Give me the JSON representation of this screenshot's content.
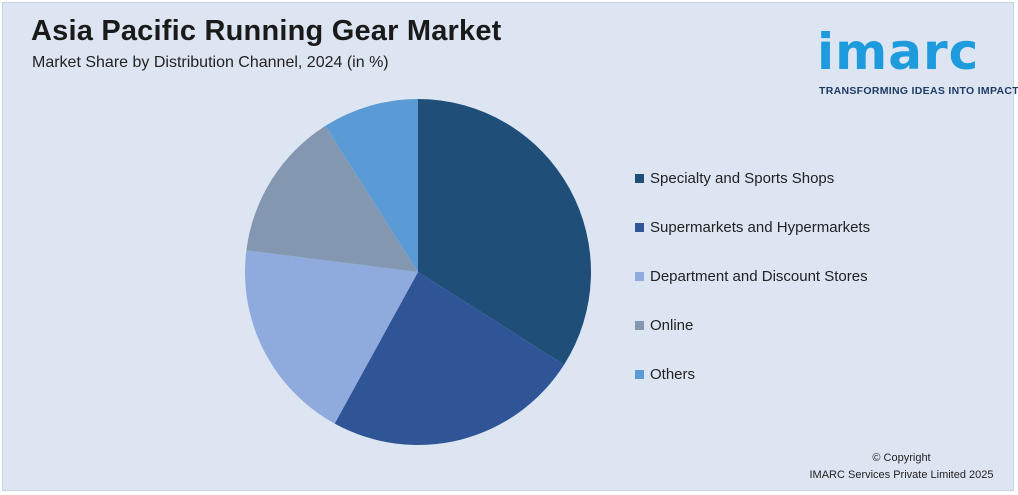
{
  "header": {
    "title": "Asia Pacific Running Gear Market",
    "subtitle": "Market Share by Distribution Channel, 2024 (in %)"
  },
  "logo": {
    "wordmark": "imarc",
    "tagline": "TRANSFORMING IDEAS INTO IMPACT",
    "color": "#1d9bdc"
  },
  "chart_data": {
    "type": "pie",
    "title": "Asia Pacific Running Gear Market",
    "subtitle": "Market Share by Distribution Channel, 2024 (in %)",
    "categories": [
      "Specialty and Sports Shops",
      "Supermarkets and Hypermarkets",
      "Department and Discount Stores",
      "Online",
      "Others"
    ],
    "values": [
      34,
      24,
      19,
      14,
      9
    ],
    "colors": [
      "#1f4e79",
      "#2f5597",
      "#8faadc",
      "#8497b0",
      "#5b9bd5"
    ],
    "legend_position": "right"
  },
  "footer": {
    "copyright_line1": "© Copyright",
    "copyright_line2": "IMARC Services Private Limited 2025"
  }
}
